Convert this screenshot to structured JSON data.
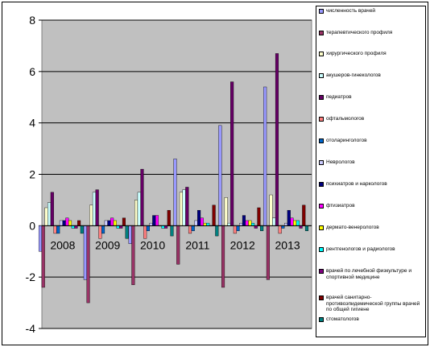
{
  "chart_data": {
    "type": "bar",
    "categories": [
      "2008",
      "2009",
      "2010",
      "2011",
      "2012",
      "2013"
    ],
    "ylim": [
      -4,
      8
    ],
    "yticks": [
      -4,
      -2,
      0,
      2,
      4,
      6,
      8
    ],
    "grid": true,
    "legend_position": "right",
    "series": [
      {
        "name": "численность врачей",
        "color": "#9999FF",
        "values": [
          -1.0,
          -2.1,
          -0.7,
          2.6,
          3.9,
          5.4
        ]
      },
      {
        "name": "терапевтического профиля",
        "color": "#993366",
        "values": [
          -2.4,
          -3.0,
          -2.3,
          -1.5,
          -2.4,
          -2.1
        ]
      },
      {
        "name": "хирургического профиля",
        "color": "#FFFFCC",
        "values": [
          0.7,
          0.8,
          1.0,
          1.3,
          1.1,
          1.2
        ]
      },
      {
        "name": "акушеров-гинекологов",
        "color": "#CCFFFF",
        "values": [
          0.9,
          1.3,
          1.3,
          1.4,
          0.1,
          0.3
        ]
      },
      {
        "name": "педиатров",
        "color": "#660066",
        "values": [
          1.3,
          1.4,
          2.2,
          1.5,
          5.6,
          6.7
        ]
      },
      {
        "name": "офтальмологов",
        "color": "#FF8080",
        "values": [
          -0.3,
          -0.5,
          -0.5,
          -0.3,
          -0.3,
          -0.3
        ]
      },
      {
        "name": "отоларингологов",
        "color": "#0066CC",
        "values": [
          -0.3,
          -0.3,
          -0.2,
          -0.2,
          -0.2,
          -0.1
        ]
      },
      {
        "name": "Неврологов",
        "color": "#CCCCFF",
        "values": [
          0.2,
          0.2,
          0.1,
          0.2,
          0.1,
          0.1
        ]
      },
      {
        "name": "психиатров и наркологов",
        "color": "#000080",
        "values": [
          0.2,
          0.2,
          0.4,
          0.6,
          0.4,
          0.6
        ]
      },
      {
        "name": "фтизиатров",
        "color": "#FF00FF",
        "values": [
          0.3,
          0.3,
          0.4,
          0.3,
          0.2,
          0.3
        ]
      },
      {
        "name": "дермато-венерологов",
        "color": "#FFFF00",
        "values": [
          0.2,
          0.2,
          0.0,
          0.1,
          0.2,
          0.2
        ]
      },
      {
        "name": "рентгенологов и радиологов",
        "color": "#00FFFF",
        "values": [
          -0.1,
          -0.1,
          -0.1,
          0.1,
          0.1,
          0.2
        ]
      },
      {
        "name": "врачей по лечебной физкультуре и спортивной медицине",
        "color": "#800080",
        "values": [
          -0.1,
          -0.1,
          -0.1,
          0.0,
          -0.1,
          -0.1
        ]
      },
      {
        "name": "врачей санитарно-противоэпидемической группы врачей по общей гигиене",
        "color": "#800000",
        "values": [
          0.2,
          0.3,
          0.6,
          0.8,
          0.7,
          0.8
        ]
      },
      {
        "name": "стоматологов",
        "color": "#008080",
        "values": [
          -0.3,
          -0.5,
          -0.4,
          -0.4,
          -0.2,
          -0.2
        ]
      }
    ]
  }
}
